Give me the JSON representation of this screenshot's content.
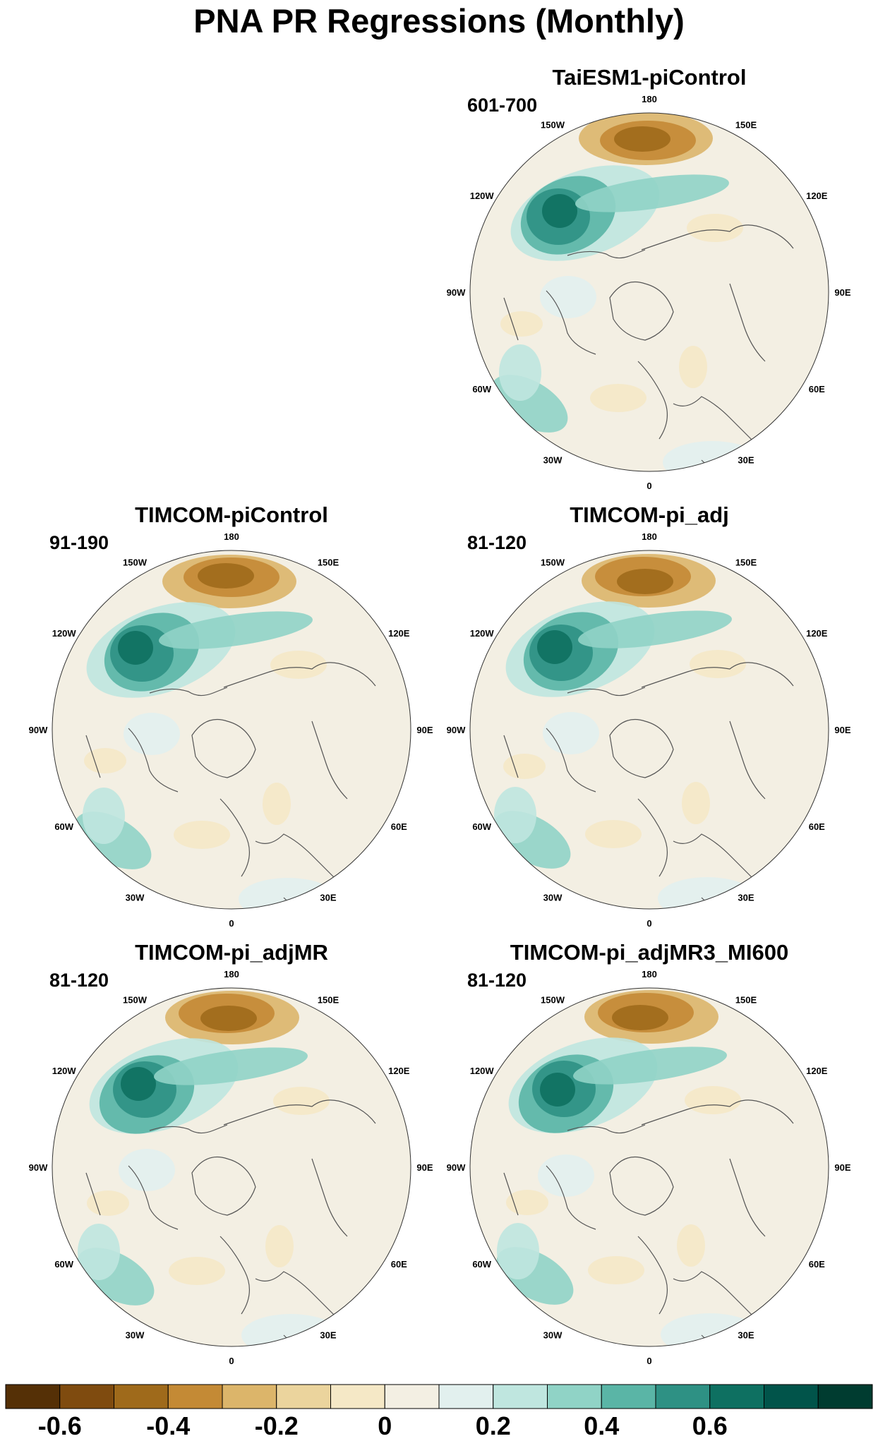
{
  "title": "PNA PR Regressions (Monthly)",
  "panels": [
    {
      "id": "taiesm1",
      "title": "TaiESM1-piControl",
      "period": "601-700"
    },
    {
      "id": "timcom-picontrol",
      "title": "TIMCOM-piControl",
      "period": "91-190"
    },
    {
      "id": "timcom-pi-adj",
      "title": "TIMCOM-pi_adj",
      "period": "81-120"
    },
    {
      "id": "timcom-pi-adjmr",
      "title": "TIMCOM-pi_adjMR",
      "period": "81-120"
    },
    {
      "id": "timcom-pi-adjmr3",
      "title": "TIMCOM-pi_adjMR3_MI600",
      "period": "81-120"
    }
  ],
  "longitude_labels": [
    "180",
    "150E",
    "120E",
    "90E",
    "60E",
    "30E",
    "0",
    "30W",
    "60W",
    "90W",
    "120W",
    "150W"
  ],
  "colorbar": {
    "colors": [
      "#553006",
      "#7f4b0f",
      "#9f6a1b",
      "#c48a35",
      "#dcb56a",
      "#ebd49d",
      "#f5e8c6",
      "#f3efe3",
      "#e2f0ee",
      "#bfe6df",
      "#90d3c6",
      "#5ab5a6",
      "#2e9184",
      "#0e7061",
      "#01544a",
      "#003c30"
    ],
    "labels": [
      "-0.6",
      "-0.4",
      "-0.2",
      "0",
      "0.2",
      "0.4",
      "0.6"
    ],
    "label_boundaries": [
      1,
      3,
      5,
      7,
      9,
      11,
      13
    ]
  }
}
